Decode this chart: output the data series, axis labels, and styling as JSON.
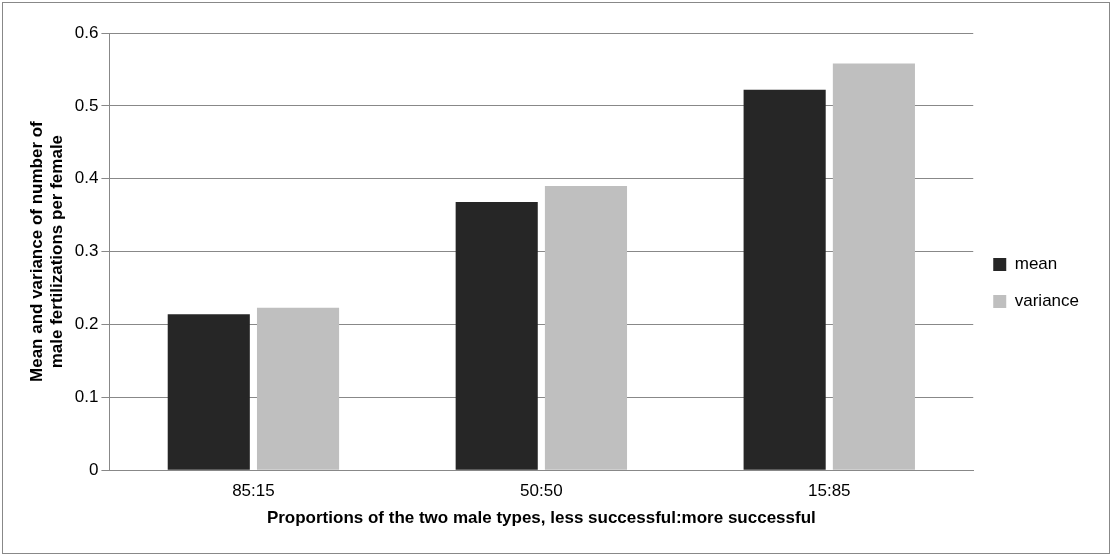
{
  "chart_data": {
    "type": "bar",
    "xlabel": "Proportions of the two male types, less successful:more successful",
    "ylabel": "Mean and variance of number of male fertilizations per female",
    "categories": [
      "85:15",
      "50:50",
      "15:85"
    ],
    "series": [
      {
        "name": "mean",
        "color": "#262626",
        "values": [
          0.214,
          0.368,
          0.522
        ]
      },
      {
        "name": "variance",
        "color": "#bfbfbf",
        "values": [
          0.223,
          0.39,
          0.558
        ]
      }
    ],
    "ylim": [
      0,
      0.6
    ],
    "yticks": [
      0,
      0.1,
      0.2,
      0.3,
      0.4,
      0.5,
      0.6
    ],
    "grid": "y",
    "legend": "right"
  }
}
